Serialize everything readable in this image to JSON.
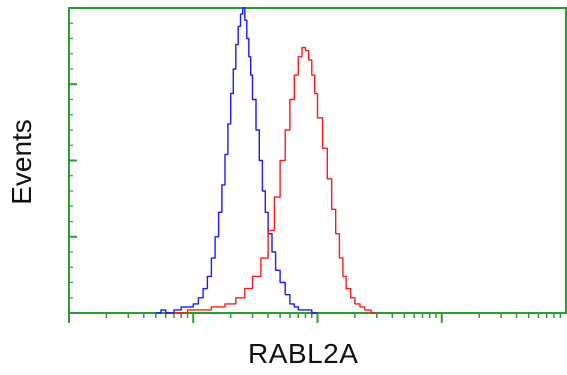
{
  "colors": {
    "frame": "#2e9b2e",
    "series_blue": "#1a1aff",
    "series_red": "#ff1a1a"
  },
  "chart_data": {
    "type": "line",
    "xlabel": "RABL2A",
    "ylabel": "Events",
    "x_scale": "log",
    "xlim": [
      0.1,
      1000
    ],
    "ylim": [
      0,
      100
    ],
    "grid": false,
    "series": [
      {
        "color": "#1a1aff",
        "points": [
          [
            0.5,
            0
          ],
          [
            0.55,
            1
          ],
          [
            0.6,
            0
          ],
          [
            0.7,
            1
          ],
          [
            0.8,
            2
          ],
          [
            0.9,
            2
          ],
          [
            1.0,
            3
          ],
          [
            1.1,
            5
          ],
          [
            1.2,
            8
          ],
          [
            1.3,
            12
          ],
          [
            1.4,
            18
          ],
          [
            1.5,
            25
          ],
          [
            1.6,
            33
          ],
          [
            1.7,
            42
          ],
          [
            1.8,
            52
          ],
          [
            1.9,
            62
          ],
          [
            2.0,
            72
          ],
          [
            2.1,
            80
          ],
          [
            2.2,
            88
          ],
          [
            2.3,
            94
          ],
          [
            2.4,
            98
          ],
          [
            2.5,
            100
          ],
          [
            2.6,
            96
          ],
          [
            2.7,
            90
          ],
          [
            2.8,
            84
          ],
          [
            2.9,
            78
          ],
          [
            3.0,
            70
          ],
          [
            3.2,
            60
          ],
          [
            3.4,
            50
          ],
          [
            3.6,
            40
          ],
          [
            3.8,
            33
          ],
          [
            4.0,
            26
          ],
          [
            4.3,
            20
          ],
          [
            4.6,
            14
          ],
          [
            5.0,
            10
          ],
          [
            5.5,
            6
          ],
          [
            6.0,
            3
          ],
          [
            6.5,
            2
          ],
          [
            7.0,
            1
          ],
          [
            8.0,
            1
          ],
          [
            9.0,
            0
          ],
          [
            10.0,
            0
          ]
        ]
      },
      {
        "color": "#ff1a1a",
        "points": [
          [
            0.7,
            0
          ],
          [
            0.9,
            1
          ],
          [
            1.1,
            1
          ],
          [
            1.4,
            2
          ],
          [
            1.8,
            3
          ],
          [
            2.2,
            5
          ],
          [
            2.6,
            8
          ],
          [
            3.0,
            12
          ],
          [
            3.5,
            18
          ],
          [
            4.0,
            27
          ],
          [
            4.5,
            38
          ],
          [
            5.0,
            50
          ],
          [
            5.5,
            60
          ],
          [
            6.0,
            70
          ],
          [
            6.5,
            78
          ],
          [
            7.0,
            84
          ],
          [
            7.5,
            87
          ],
          [
            8.0,
            86
          ],
          [
            8.5,
            83
          ],
          [
            9.0,
            78
          ],
          [
            9.5,
            72
          ],
          [
            10.0,
            64
          ],
          [
            11.0,
            54
          ],
          [
            12.0,
            44
          ],
          [
            13.0,
            34
          ],
          [
            14.0,
            26
          ],
          [
            15.0,
            18
          ],
          [
            16.0,
            12
          ],
          [
            17.0,
            8
          ],
          [
            18.5,
            5
          ],
          [
            20.0,
            3
          ],
          [
            22.0,
            2
          ],
          [
            24.0,
            1
          ],
          [
            27.0,
            0
          ],
          [
            30.0,
            0
          ]
        ]
      }
    ]
  }
}
